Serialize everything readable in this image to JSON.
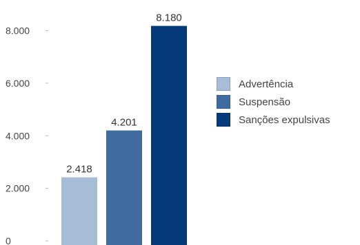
{
  "chart_data": {
    "type": "bar",
    "categories": [
      "Advertência",
      "Suspensão",
      "Sanções expulsivas"
    ],
    "values": [
      2418,
      4201,
      8180
    ],
    "value_labels": [
      "2.418",
      "4.201",
      "8.180"
    ],
    "colors": [
      "#a7bcd7",
      "#3f6b9f",
      "#053b7a"
    ],
    "y_ticks": [
      0,
      2000,
      4000,
      6000,
      8000
    ],
    "y_tick_labels": [
      "0",
      "2.000",
      "4.000",
      "6.000",
      "8.000"
    ],
    "ylim": [
      0,
      8000
    ],
    "title": "",
    "xlabel": "",
    "ylabel": "",
    "grid": false,
    "legend_position": "right"
  },
  "legend": {
    "items": [
      {
        "label": "Advertência",
        "color": "#a7bcd7"
      },
      {
        "label": "Suspensão",
        "color": "#3f6b9f"
      },
      {
        "label": "Sanções expulsivas",
        "color": "#053b7a"
      }
    ]
  }
}
